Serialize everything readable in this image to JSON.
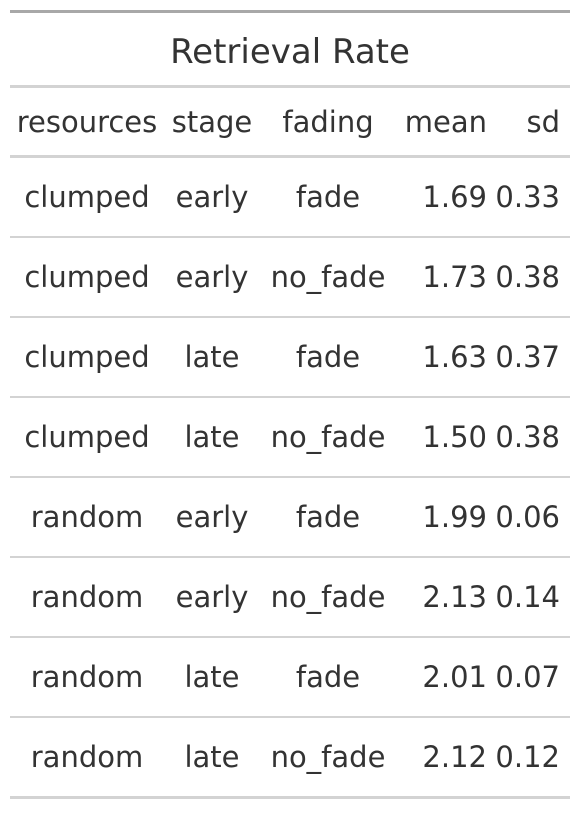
{
  "title": "Retrieval Rate",
  "columns": [
    "resources",
    "stage",
    "fading",
    "mean",
    "sd"
  ],
  "rows": [
    [
      "clumped",
      "early",
      "fade",
      "1.69",
      "0.33"
    ],
    [
      "clumped",
      "early",
      "no_fade",
      "1.73",
      "0.38"
    ],
    [
      "clumped",
      "late",
      "fade",
      "1.63",
      "0.37"
    ],
    [
      "clumped",
      "late",
      "no_fade",
      "1.50",
      "0.38"
    ],
    [
      "random",
      "early",
      "fade",
      "1.99",
      "0.06"
    ],
    [
      "random",
      "early",
      "no_fade",
      "2.13",
      "0.14"
    ],
    [
      "random",
      "late",
      "fade",
      "2.01",
      "0.07"
    ],
    [
      "random",
      "late",
      "no_fade",
      "2.12",
      "0.12"
    ]
  ]
}
